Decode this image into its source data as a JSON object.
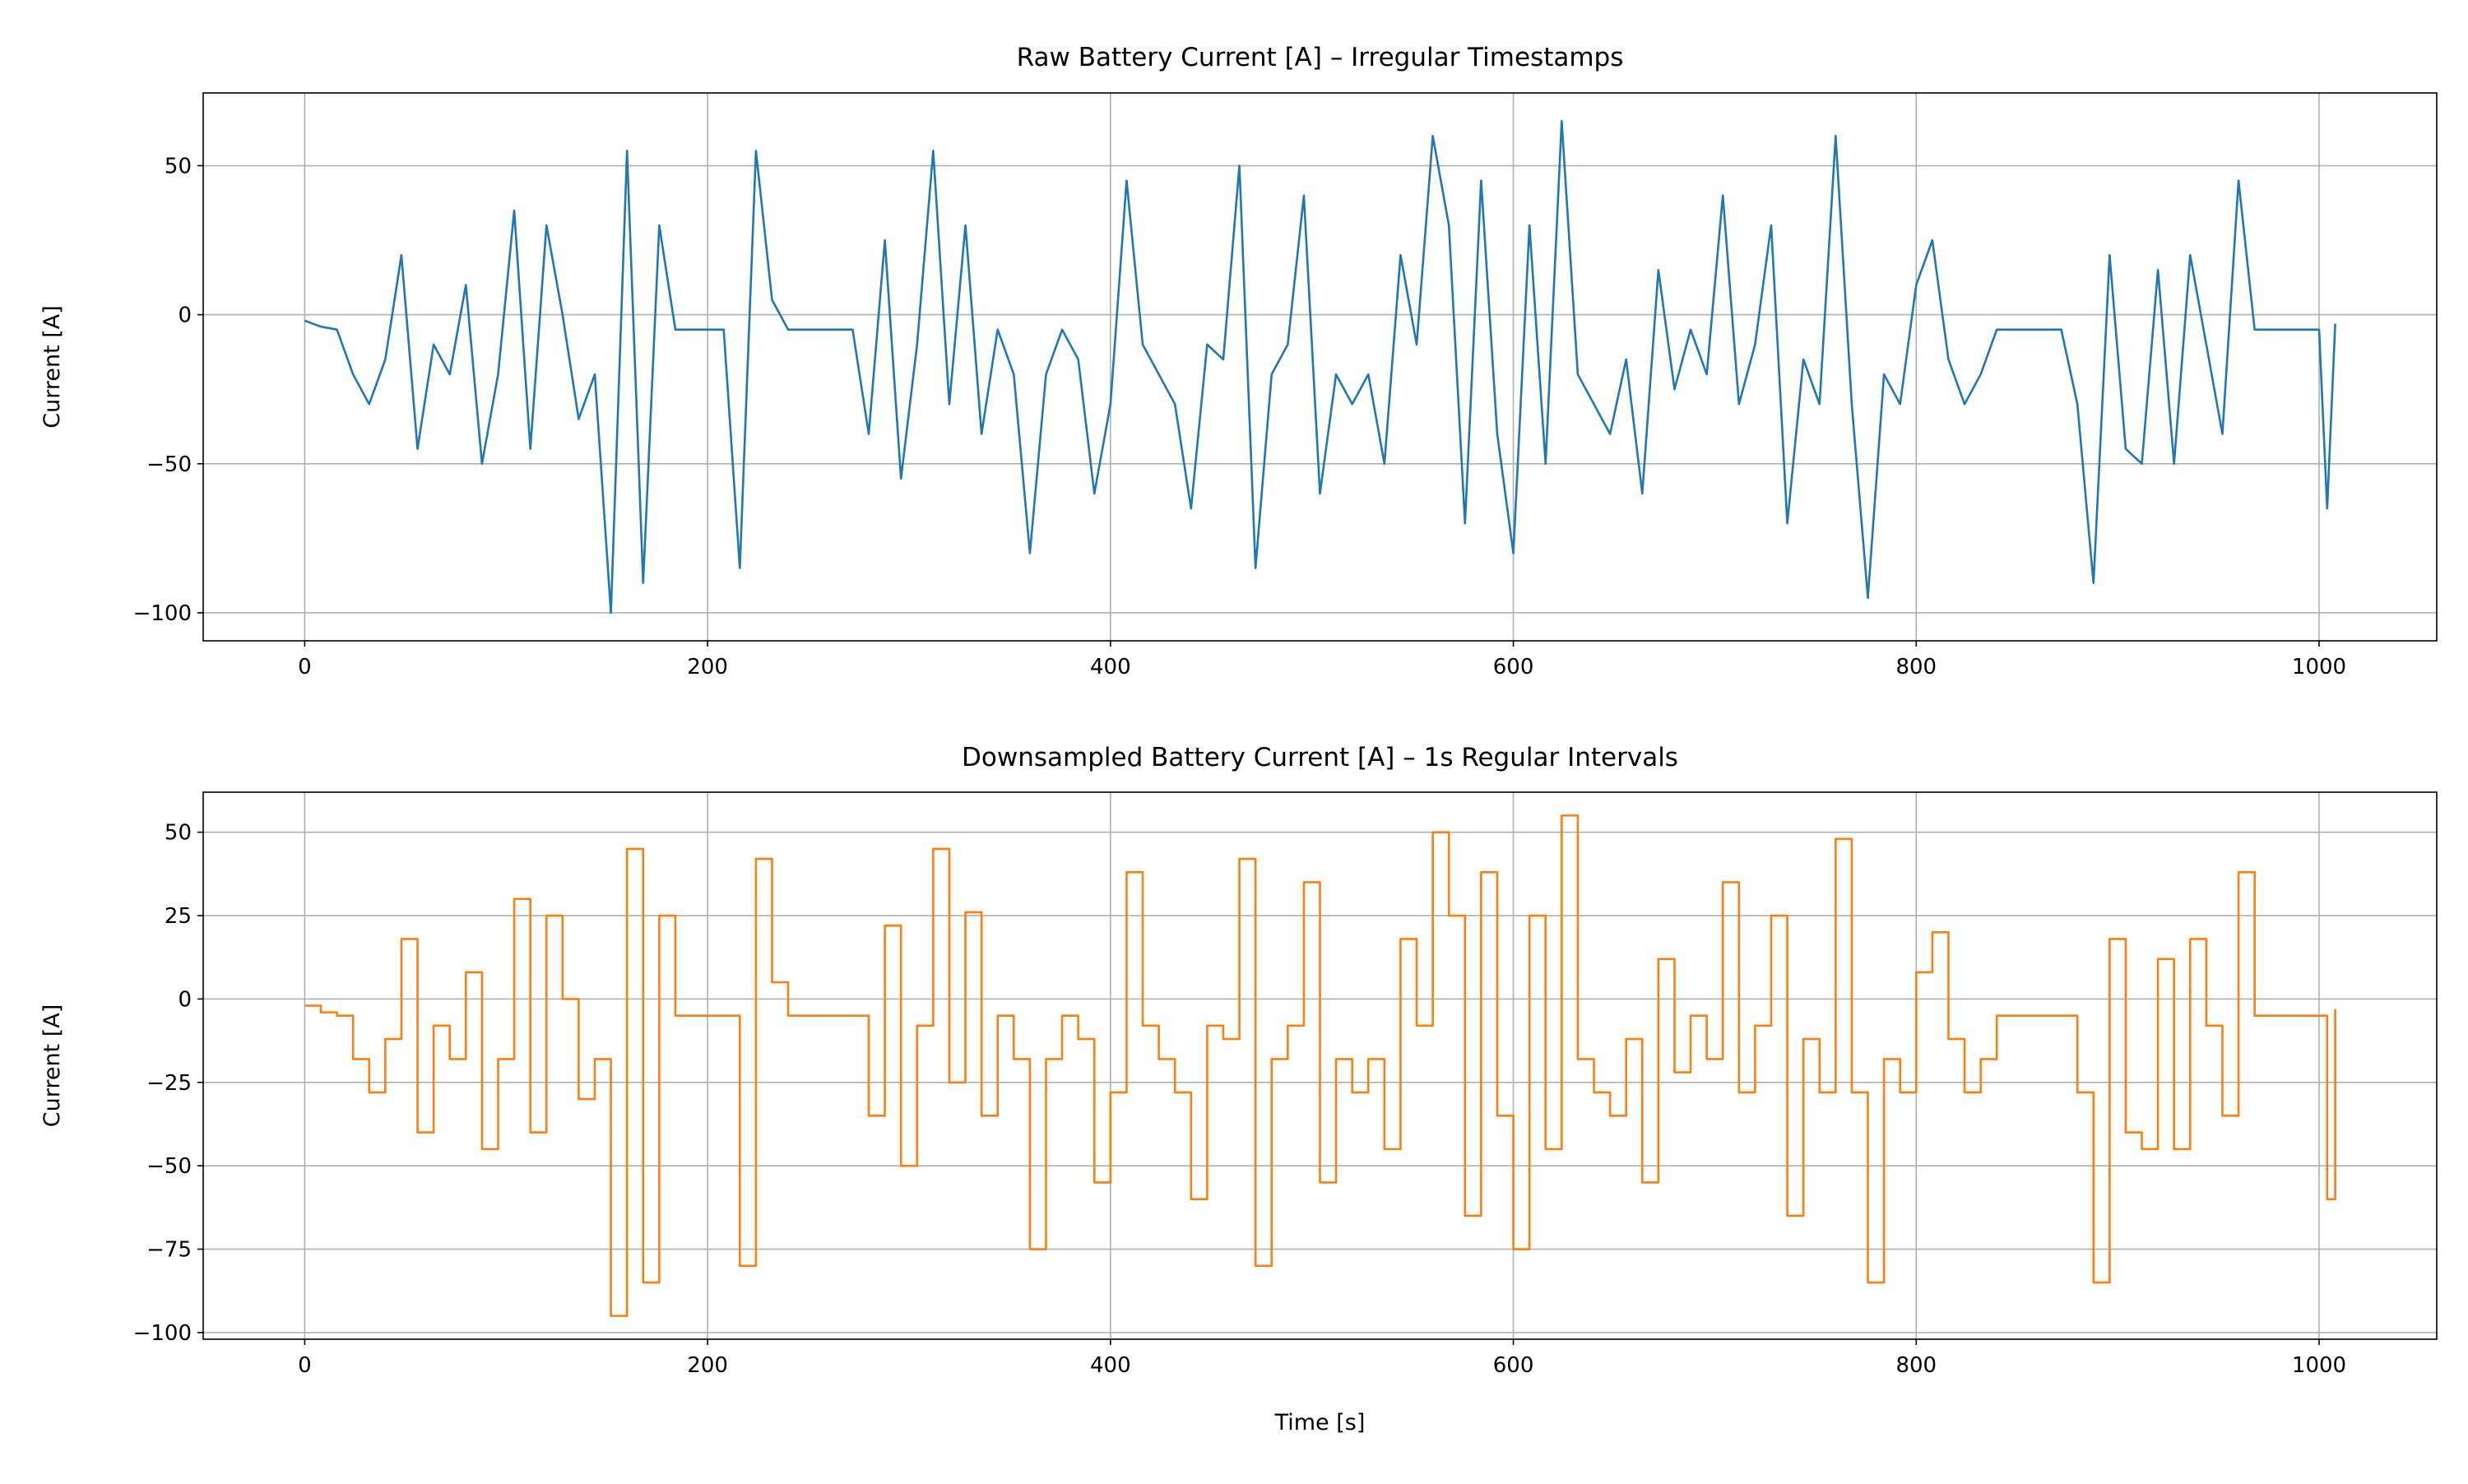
{
  "chart_data": [
    {
      "type": "line",
      "title": "Raw Battery Current [A] – Irregular Timestamps",
      "ylabel": "Current [A]",
      "x": [
        0,
        8,
        16,
        24,
        32,
        40,
        48,
        56,
        64,
        72,
        80,
        88,
        96,
        104,
        112,
        120,
        128,
        136,
        144,
        152,
        160,
        168,
        176,
        184,
        192,
        200,
        208,
        216,
        224,
        232,
        240,
        248,
        256,
        264,
        272,
        280,
        288,
        296,
        304,
        312,
        320,
        328,
        336,
        344,
        352,
        360,
        368,
        376,
        384,
        392,
        400,
        408,
        416,
        424,
        432,
        440,
        448,
        456,
        464,
        472,
        480,
        488,
        496,
        504,
        512,
        520,
        528,
        536,
        544,
        552,
        560,
        568,
        576,
        584,
        592,
        600,
        608,
        616,
        624,
        632,
        640,
        648,
        656,
        664,
        672,
        680,
        688,
        696,
        704,
        712,
        720,
        728,
        736,
        744,
        752,
        760,
        768,
        776,
        784,
        792,
        800,
        808,
        816,
        824,
        832,
        840,
        848,
        856,
        864,
        872,
        880,
        888,
        896,
        904,
        912,
        920,
        928,
        936,
        944,
        952,
        960,
        968,
        976,
        984,
        992,
        1000,
        1004,
        1008
      ],
      "series": [
        {
          "name": "Raw",
          "color": "#1f77b4",
          "values": [
            -2,
            -4,
            -5,
            -20,
            -30,
            -15,
            20,
            -45,
            -10,
            -20,
            10,
            -50,
            -20,
            35,
            -45,
            30,
            0,
            -35,
            -20,
            -100,
            55,
            -90,
            30,
            -5,
            -5,
            -5,
            -5,
            -85,
            55,
            5,
            -5,
            -5,
            -5,
            -5,
            -5,
            -40,
            25,
            -55,
            -10,
            55,
            -30,
            30,
            -40,
            -5,
            -20,
            -80,
            -20,
            -5,
            -15,
            -60,
            -30,
            45,
            -10,
            -20,
            -30,
            -65,
            -10,
            -15,
            50,
            -85,
            -20,
            -10,
            40,
            -60,
            -20,
            -30,
            -20,
            -50,
            20,
            -10,
            60,
            30,
            -70,
            45,
            -40,
            -80,
            30,
            -50,
            65,
            -20,
            -30,
            -40,
            -15,
            -60,
            15,
            -25,
            -5,
            -20,
            40,
            -30,
            -10,
            30,
            -70,
            -15,
            -30,
            60,
            -30,
            -95,
            -20,
            -30,
            10,
            25,
            -15,
            -30,
            -20,
            -5,
            -5,
            -5,
            -5,
            -5,
            -30,
            -90,
            20,
            -45,
            -50,
            15,
            -50,
            20,
            -10,
            -40,
            45,
            -5,
            -5,
            -5,
            -5,
            -5,
            -65,
            -3
          ]
        }
      ],
      "xlim": [
        -50.4,
        1058.4
      ],
      "xticks": [
        0,
        200,
        400,
        600,
        800,
        1000
      ],
      "ylim": [
        -109.4,
        74.4
      ],
      "yticks": [
        {
          "value": -100,
          "label": "−100"
        },
        {
          "value": -50,
          "label": "−50"
        },
        0,
        50
      ],
      "grid": true,
      "steps": false
    },
    {
      "type": "line",
      "title": "Downsampled Battery Current [A] – 1s Regular Intervals",
      "xlabel": "Time [s]",
      "ylabel": "Current [A]",
      "x": [
        0,
        8,
        16,
        24,
        32,
        40,
        48,
        56,
        64,
        72,
        80,
        88,
        96,
        104,
        112,
        120,
        128,
        136,
        144,
        152,
        160,
        168,
        176,
        184,
        192,
        200,
        208,
        216,
        224,
        232,
        240,
        248,
        256,
        264,
        272,
        280,
        288,
        296,
        304,
        312,
        320,
        328,
        336,
        344,
        352,
        360,
        368,
        376,
        384,
        392,
        400,
        408,
        416,
        424,
        432,
        440,
        448,
        456,
        464,
        472,
        480,
        488,
        496,
        504,
        512,
        520,
        528,
        536,
        544,
        552,
        560,
        568,
        576,
        584,
        592,
        600,
        608,
        616,
        624,
        632,
        640,
        648,
        656,
        664,
        672,
        680,
        688,
        696,
        704,
        712,
        720,
        728,
        736,
        744,
        752,
        760,
        768,
        776,
        784,
        792,
        800,
        808,
        816,
        824,
        832,
        840,
        848,
        856,
        864,
        872,
        880,
        888,
        896,
        904,
        912,
        920,
        928,
        936,
        944,
        952,
        960,
        968,
        976,
        984,
        992,
        1000,
        1004,
        1008
      ],
      "series": [
        {
          "name": "Downsampled",
          "color": "#ff7f0e",
          "values": [
            -2,
            -4,
            -5,
            -18,
            -28,
            -12,
            18,
            -40,
            -8,
            -18,
            8,
            -45,
            -18,
            30,
            -40,
            25,
            0,
            -30,
            -18,
            -95,
            45,
            -85,
            25,
            -5,
            -5,
            -5,
            -5,
            -80,
            42,
            5,
            -5,
            -5,
            -5,
            -5,
            -5,
            -35,
            22,
            -50,
            -8,
            45,
            -25,
            26,
            -35,
            -5,
            -18,
            -75,
            -18,
            -5,
            -12,
            -55,
            -28,
            38,
            -8,
            -18,
            -28,
            -60,
            -8,
            -12,
            42,
            -80,
            -18,
            -8,
            35,
            -55,
            -18,
            -28,
            -18,
            -45,
            18,
            -8,
            50,
            25,
            -65,
            38,
            -35,
            -75,
            25,
            -45,
            55,
            -18,
            -28,
            -35,
            -12,
            -55,
            12,
            -22,
            -5,
            -18,
            35,
            -28,
            -8,
            25,
            -65,
            -12,
            -28,
            48,
            -28,
            -85,
            -18,
            -28,
            8,
            20,
            -12,
            -28,
            -18,
            -5,
            -5,
            -5,
            -5,
            -5,
            -28,
            -85,
            18,
            -40,
            -45,
            12,
            -45,
            18,
            -8,
            -35,
            38,
            -5,
            -5,
            -5,
            -5,
            -5,
            -60,
            -3
          ]
        }
      ],
      "xlim": [
        -50.4,
        1058.4
      ],
      "xticks": [
        0,
        200,
        400,
        600,
        800,
        1000
      ],
      "ylim": [
        -102,
        62
      ],
      "yticks": [
        {
          "value": -100,
          "label": "−100"
        },
        {
          "value": -75,
          "label": "−75"
        },
        {
          "value": -50,
          "label": "−50"
        },
        {
          "value": -25,
          "label": "−25"
        },
        0,
        25,
        50
      ],
      "grid": true,
      "steps": true
    }
  ]
}
